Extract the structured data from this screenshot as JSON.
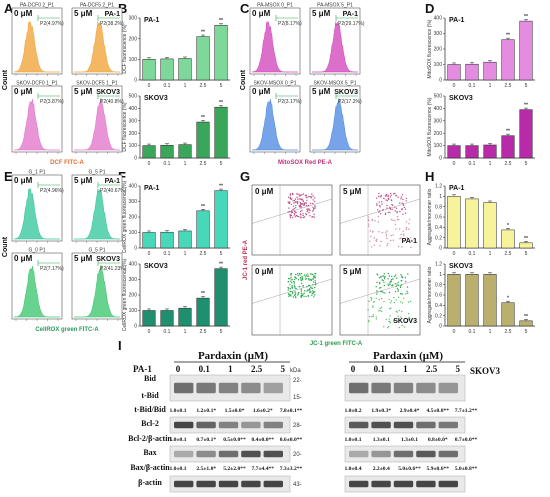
{
  "panel_letters": [
    "A",
    "B",
    "C",
    "D",
    "E",
    "F",
    "G",
    "H",
    "I"
  ],
  "common": {
    "count_label": "Count",
    "dose_0": "0 μM",
    "dose_5": "5 μM",
    "cell_pa1": "PA-1",
    "cell_skov3": "SKOV3",
    "sig1": "*",
    "sig2": "**",
    "doses": [
      "0",
      "0.1",
      "1",
      "2.5",
      "5"
    ]
  },
  "flow_panels": {
    "A": {
      "xlabel": "DCF FITC-A",
      "top_color": "#f0a030",
      "bottom_color": "#e070c8",
      "pa1_0_gate": "P2(4.97%)",
      "pa1_5_gate": "P2(38.2%)",
      "sk_0_gate": "P2(3.87%)",
      "sk_5_gate": "P2(40.8%)",
      "pa1_0_title": "PA-DCF0 2_P1",
      "pa1_5_title": "PA-DCF5 2_P1",
      "sk_0_title": "SKOV-DCF0 1_P1",
      "sk_5_title": "SKOV-DCF5 1_P1"
    },
    "C": {
      "xlabel": "MitoSOX Red PE-A",
      "top_color": "#d03fb8",
      "bottom_color": "#4a86e0",
      "pa1_0_gate": "P2(8.17%)",
      "pa1_5_gate": "P2(29.17%)",
      "sk_0_gate": "P2(3.17%)",
      "sk_5_gate": "P2(17.2%)",
      "pa1_0_title": "PA-MSOX 0_P1",
      "pa1_5_title": "PA-MSOX 5_P1",
      "sk_0_title": "SKOV-MSOX 0_P1",
      "sk_5_title": "SKOV-MSOX 5_P1"
    },
    "E": {
      "xlabel": "CellROX green FITC-A",
      "top_color": "#2ec49a",
      "bottom_color": "#36c46a",
      "pa1_0_gate": "P2(4.96%)",
      "pa1_5_gate": "P2(40.67%)",
      "sk_0_gate": "P2(7.17%)",
      "sk_5_gate": "P2(41.23%)",
      "pa1_0_title": "G_1 P1",
      "pa1_5_title": "G_5 P1",
      "sk_0_title": "G_0 P1",
      "sk_5_title": "G_5 P1"
    }
  },
  "chart_data": [
    {
      "id": "B-top",
      "type": "bar",
      "ylabel": "DCF fluorescence (%)",
      "categories": [
        "0",
        "0.1",
        "1",
        "2.5",
        "5"
      ],
      "values": [
        100,
        102,
        104,
        210,
        265
      ],
      "ylim": [
        0,
        300
      ],
      "yticks": [
        0,
        100,
        200,
        300
      ],
      "significance": [
        "",
        "",
        "",
        "**",
        "**"
      ],
      "color": "#7ed89a"
    },
    {
      "id": "B-bottom",
      "type": "bar",
      "ylabel": "DCF fluorescence (%)",
      "categories": [
        "0",
        "0.1",
        "1",
        "2.5",
        "5"
      ],
      "values": [
        100,
        103,
        108,
        290,
        410
      ],
      "ylim": [
        0,
        500
      ],
      "yticks": [
        0,
        100,
        200,
        300,
        400,
        500
      ],
      "significance": [
        "",
        "",
        "",
        "**",
        "**"
      ],
      "color": "#3aa65a"
    },
    {
      "id": "D-top",
      "type": "bar",
      "ylabel": "MitoSOX fluorescence (%)",
      "categories": [
        "0",
        "0.1",
        "1",
        "2.5",
        "5"
      ],
      "values": [
        100,
        102,
        115,
        260,
        380
      ],
      "ylim": [
        0,
        400
      ],
      "yticks": [
        0,
        100,
        200,
        300,
        400
      ],
      "significance": [
        "",
        "",
        "",
        "**",
        "**"
      ],
      "color": "#e48de0"
    },
    {
      "id": "D-bottom",
      "type": "bar",
      "ylabel": "MitoSOX fluorescence (%)",
      "categories": [
        "0",
        "0.1",
        "1",
        "2.5",
        "5"
      ],
      "values": [
        100,
        100,
        105,
        180,
        390
      ],
      "ylim": [
        0,
        500
      ],
      "yticks": [
        0,
        100,
        200,
        300,
        400,
        500
      ],
      "significance": [
        "",
        "",
        "",
        "**",
        "**"
      ],
      "color": "#b72aa8"
    },
    {
      "id": "F-top",
      "type": "bar",
      "ylabel": "CellROX green fluorescence (%)",
      "categories": [
        "0",
        "0.1",
        "1",
        "2.5",
        "5"
      ],
      "values": [
        100,
        102,
        110,
        240,
        370
      ],
      "ylim": [
        0,
        400
      ],
      "yticks": [
        0,
        100,
        200,
        300,
        400
      ],
      "significance": [
        "",
        "",
        "",
        "**",
        "**"
      ],
      "color": "#46d8b8"
    },
    {
      "id": "F-bottom",
      "type": "bar",
      "ylabel": "CellROX green fluorescence (%)",
      "categories": [
        "0",
        "0.1",
        "1",
        "2.5",
        "5"
      ],
      "values": [
        100,
        100,
        115,
        180,
        370
      ],
      "ylim": [
        0,
        400
      ],
      "yticks": [
        0,
        100,
        200,
        300,
        400
      ],
      "significance": [
        "",
        "",
        "",
        "**",
        "**"
      ],
      "color": "#1f8f70"
    },
    {
      "id": "H-top",
      "type": "bar",
      "ylabel": "Aggregate/monomer ratio",
      "categories": [
        "0",
        "0.1",
        "1",
        "2.5",
        "5"
      ],
      "values": [
        1.0,
        0.95,
        0.88,
        0.35,
        0.1
      ],
      "ylim": [
        0,
        1.2
      ],
      "yticks": [
        0,
        0.2,
        0.4,
        0.6,
        0.8,
        1.0,
        1.2
      ],
      "significance": [
        "",
        "",
        "",
        "*",
        "**"
      ],
      "color": "#f7f39a"
    },
    {
      "id": "H-bottom",
      "type": "bar",
      "ylabel": "Aggregate/monomer ratio",
      "categories": [
        "0",
        "0.1",
        "1",
        "2.5",
        "5"
      ],
      "values": [
        1.0,
        1.0,
        1.0,
        0.45,
        0.1
      ],
      "ylim": [
        0,
        1.2
      ],
      "yticks": [
        0,
        0.2,
        0.4,
        0.6,
        0.8,
        1.0,
        1.2
      ],
      "significance": [
        "",
        "",
        "",
        "*",
        "**"
      ],
      "color": "#b9b070"
    }
  ],
  "panel_G": {
    "xlabel": "JC-1 green FITC-A",
    "ylabel": "JC-1 red PE-A"
  },
  "western": {
    "header": "Pardaxin (μM)",
    "left_cell": "PA-1",
    "right_cell": "SKOV3",
    "kda": "kDa",
    "doses": [
      "0",
      "0.1",
      "1",
      "2.5",
      "5"
    ],
    "rows": {
      "bid": "Bid",
      "tbid": "t-Bid",
      "tbid_ratio": "t-Bid/Bid",
      "bcl2": "Bcl-2",
      "bcl2_ratio": "Bcl-2/β-actin",
      "bax": "Bax",
      "bax_ratio": "Bax/β-actin",
      "actin": "β-actin"
    },
    "kda_marks": {
      "m22": "22-",
      "m15": "15-",
      "m28": "28-",
      "m20": "20-",
      "m43": "43-"
    },
    "ratios_left": {
      "tbid": [
        "1.0±0.1",
        "1.2±0.1*",
        "1.5±0.0*",
        "1.6±0.2*",
        "7.8±0.1**"
      ],
      "bcl2": [
        "1.0±0.1",
        "0.7±0.1*",
        "0.5±0.0**",
        "0.4±0.0**",
        "0.6±0.0**"
      ],
      "bax": [
        "1.0±0.1",
        "2.5±1.0*",
        "5.2±2.0**",
        "7.7±4.4**",
        "7.3±3.2**"
      ]
    },
    "ratios_right": {
      "tbid": [
        "1.0±0.2",
        "1.9±0.3*",
        "2.9±0.4*",
        "4.5±0.8**",
        "7.7±1.2**"
      ],
      "bcl2": [
        "1.0±0.1",
        "1.3±0.1",
        "1.3±0.1",
        "0.8±0.0*",
        "0.7±0.0**"
      ],
      "bax": [
        "1.0±0.4",
        "2.2±0.4",
        "5.0±0.6**",
        "5.9±0.6**",
        "5.0±0.8**"
      ]
    }
  }
}
